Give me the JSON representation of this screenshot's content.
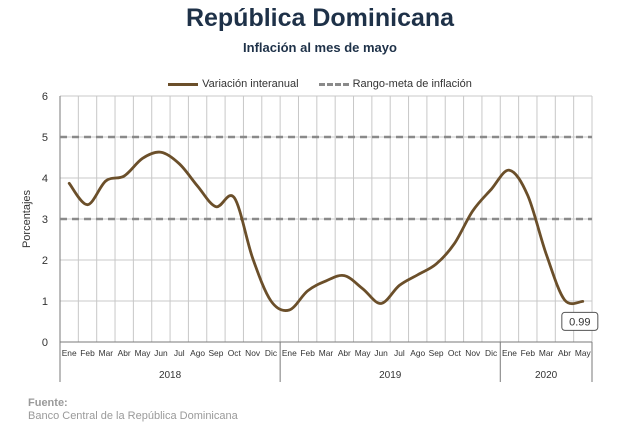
{
  "header": {
    "title": "República Dominicana",
    "subtitle": "Inflación al mes de mayo"
  },
  "legend": {
    "series_label": "Variación interanual",
    "target_label": "Rango-meta de inflación"
  },
  "source": {
    "heading": "Fuente:",
    "text": "Banco Central de la República Dominicana"
  },
  "colors": {
    "series": "#6b4f2a",
    "target": "#8a8a8a",
    "grid": "#c8c8c8"
  },
  "chart_data": {
    "type": "line",
    "ylabel": "Porcentajes",
    "ylim": [
      0,
      6
    ],
    "yticks": [
      0,
      1,
      2,
      3,
      4,
      5,
      6
    ],
    "grid": true,
    "legend_position": "top",
    "categories": [
      "Ene",
      "Feb",
      "Mar",
      "Abr",
      "May",
      "Jun",
      "Jul",
      "Ago",
      "Sep",
      "Oct",
      "Nov",
      "Dic",
      "Ene",
      "Feb",
      "Mar",
      "Abr",
      "May",
      "Jun",
      "Jul",
      "Ago",
      "Sep",
      "Oct",
      "Nov",
      "Dic",
      "Ene",
      "Feb",
      "Mar",
      "Abr",
      "May"
    ],
    "years": [
      {
        "label": "2018",
        "start": 0,
        "end": 11
      },
      {
        "label": "2019",
        "start": 12,
        "end": 23
      },
      {
        "label": "2020",
        "start": 24,
        "end": 28
      }
    ],
    "series": [
      {
        "values": [
          3.87,
          3.35,
          3.93,
          4.05,
          4.48,
          4.63,
          4.35,
          3.8,
          3.3,
          3.52,
          2.05,
          1.0,
          0.78,
          1.25,
          1.49,
          1.62,
          1.3,
          0.94,
          1.38,
          1.64,
          1.9,
          2.4,
          3.2,
          3.72,
          4.19,
          3.57,
          2.15,
          1.03,
          0.99
        ]
      }
    ],
    "target_range": [
      3,
      5
    ],
    "annotation": {
      "index": 28,
      "label": "0.99"
    }
  }
}
